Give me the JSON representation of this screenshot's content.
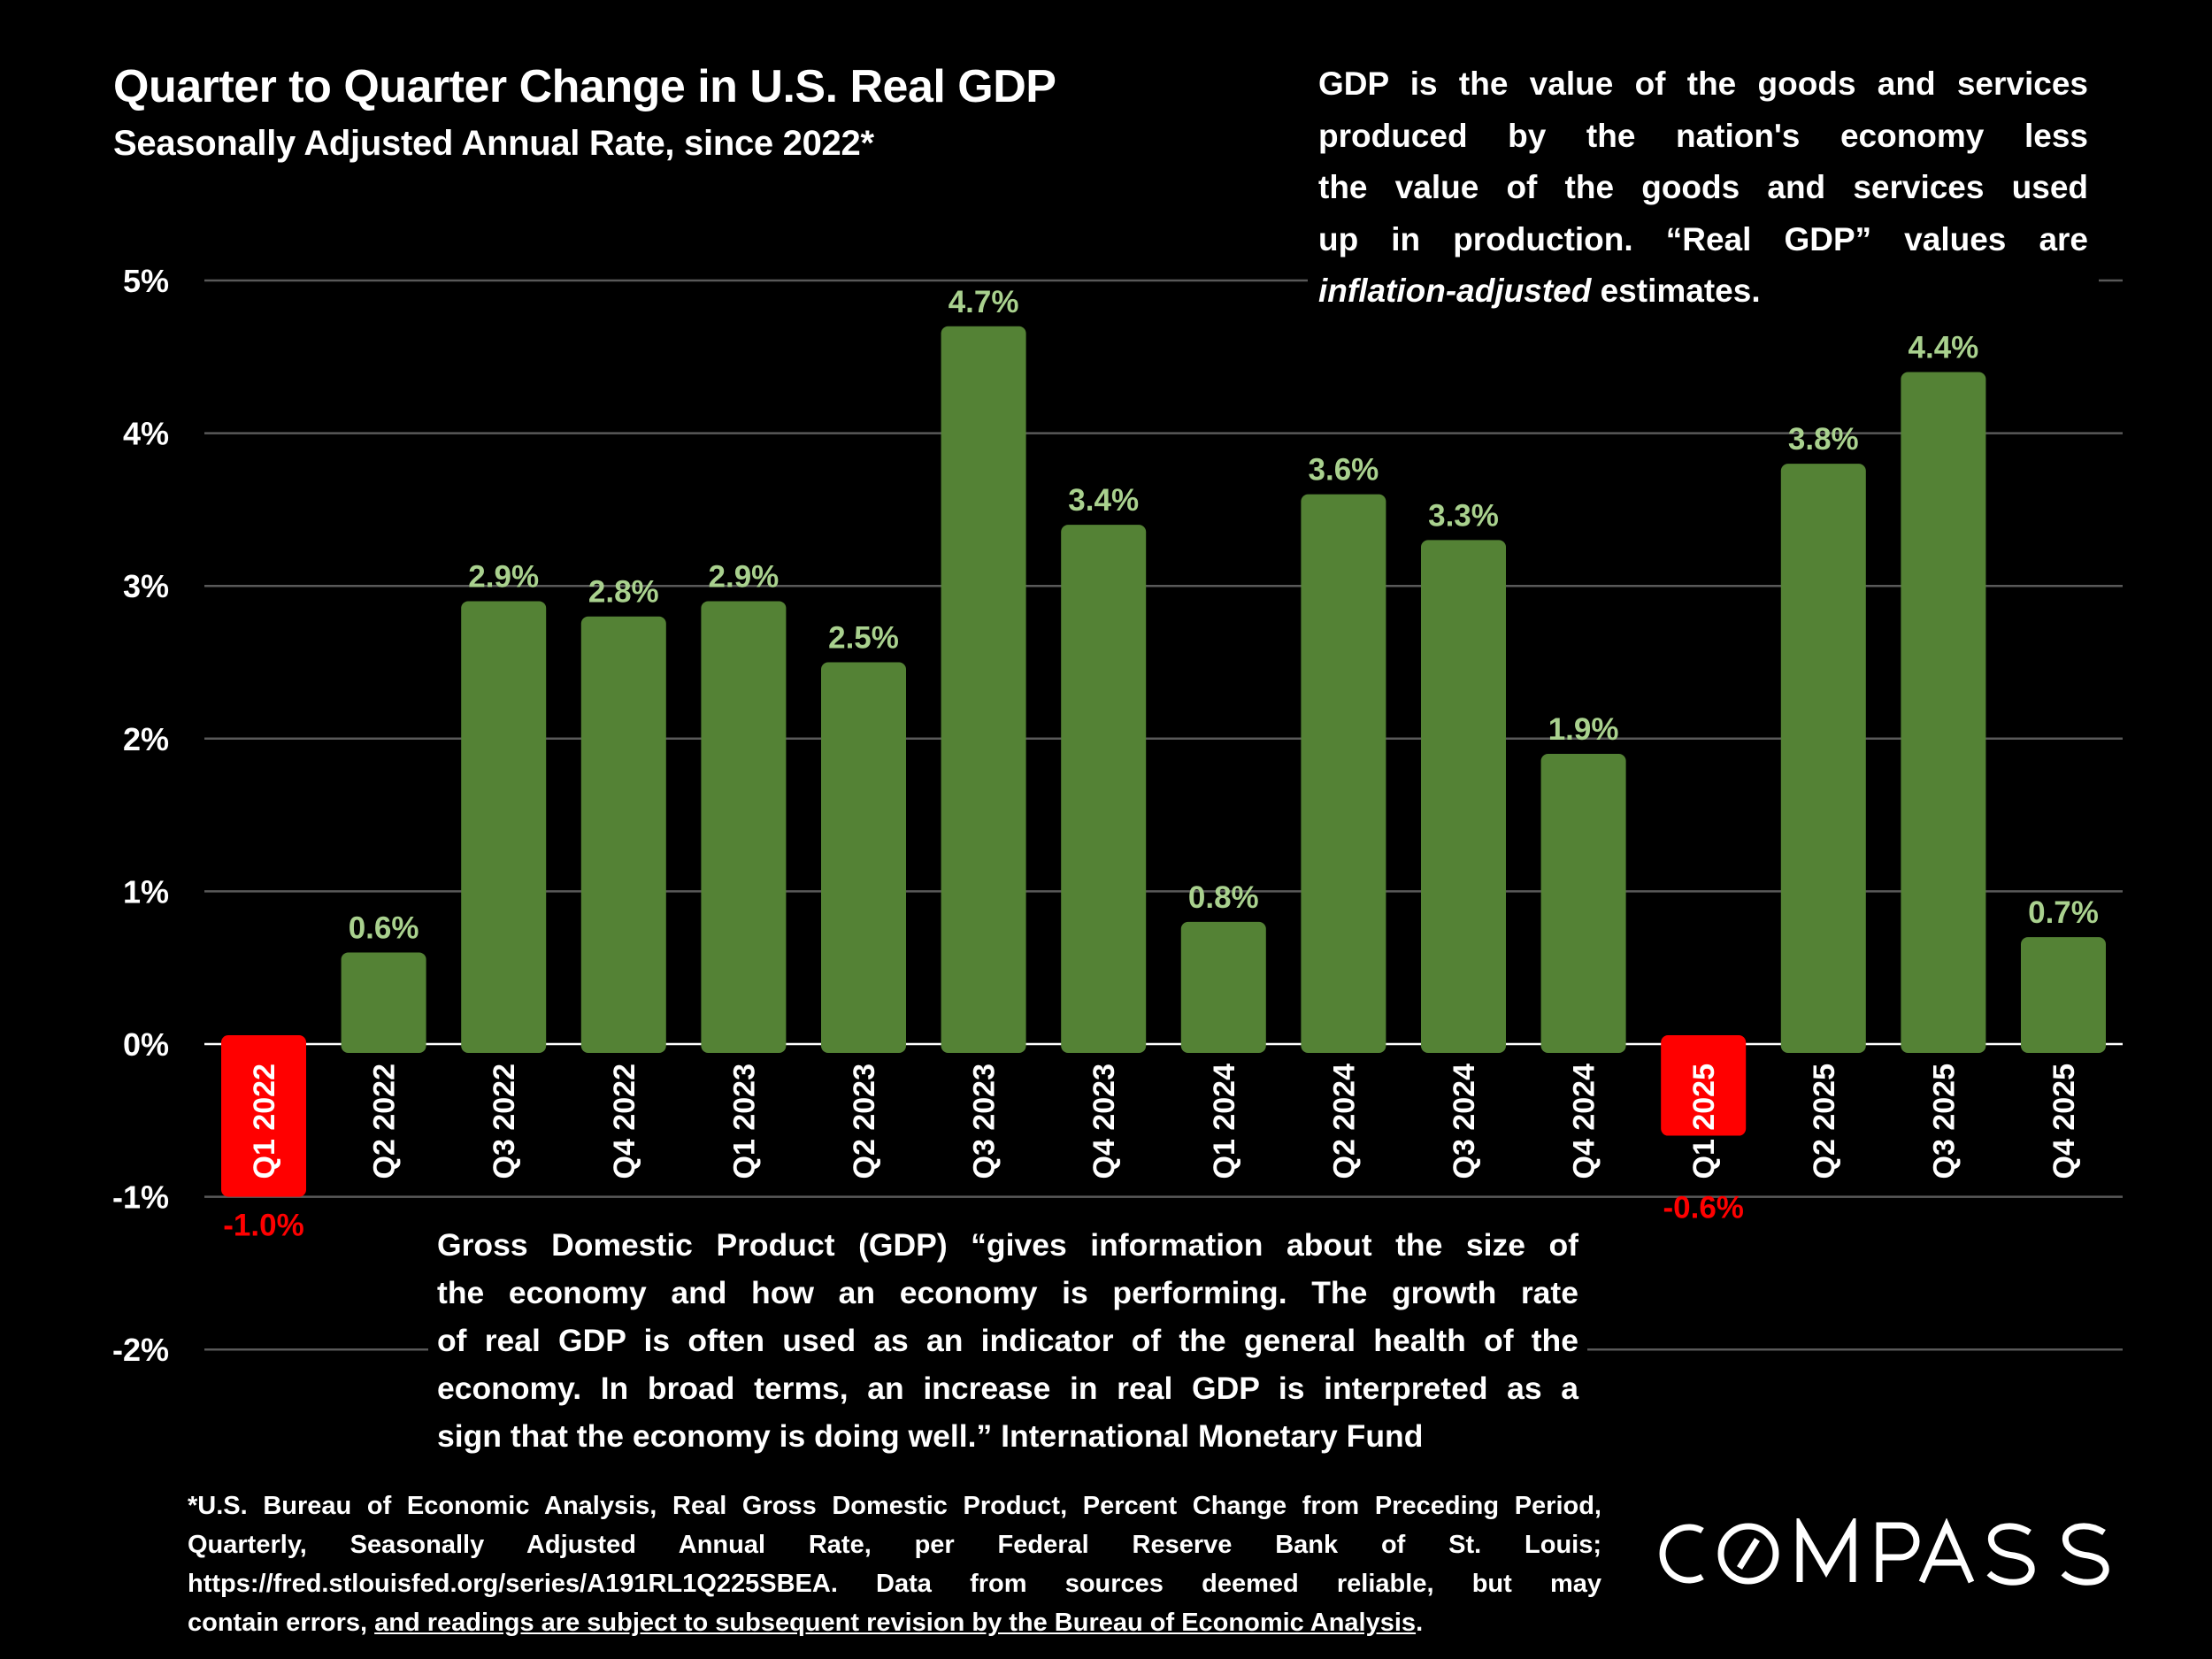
{
  "title": "Quarter to Quarter Change in U.S. Real GDP",
  "subtitle": "Seasonally Adjusted Annual Rate, since 2022*",
  "definition": {
    "lines": [
      "GDP is the value of the goods and services",
      "produced by the nation's economy less",
      "the value of the goods and services used",
      "up in production. “Real GDP” values are"
    ],
    "last_italic": "inflation-adjusted",
    "last_rest": " estimates."
  },
  "quote": {
    "lines": [
      "Gross Domestic Product (GDP) “gives information about the size of",
      "the economy and how an economy is performing. The growth rate",
      "of real GDP is often used as an indicator of the general health of the",
      "economy. In broad terms, an increase in real GDP is interpreted as a",
      "sign that the economy is doing well.” International Monetary Fund"
    ]
  },
  "footnote": {
    "lines": [
      "*U.S. Bureau of Economic Analysis, Real Gross Domestic Product, Percent Change from Preceding Period,",
      "Quarterly, Seasonally Adjusted Annual Rate, per Federal Reserve Bank of St. Louis;",
      "https://fred.stlouisfed.org/series/A191RL1Q225SBEA. Data from sources deemed reliable, but may"
    ],
    "last_plain": "contain errors, ",
    "last_underlined": "and readings are subject to subsequent revision by the Bureau of Economic Analysis",
    "last_end": "."
  },
  "logo_text": "COMPASS",
  "colors": {
    "background": "#000000",
    "positive_bar": "#548235",
    "positive_label": "#A9D18E",
    "negative": "#FF0000",
    "gridline": "#595959",
    "zero_line": "#FFFFFF"
  },
  "chart_data": {
    "type": "bar",
    "categories": [
      "Q1 2022",
      "Q2 2022",
      "Q3 2022",
      "Q4 2022",
      "Q1 2023",
      "Q2 2023",
      "Q3 2023",
      "Q4 2023",
      "Q1 2024",
      "Q2 2024",
      "Q3 2024",
      "Q4 2024",
      "Q1 2025",
      "Q2 2025",
      "Q3 2025",
      "Q4 2025"
    ],
    "values": [
      -1.0,
      0.6,
      2.9,
      2.8,
      2.9,
      2.5,
      4.7,
      3.4,
      0.8,
      3.6,
      3.3,
      1.9,
      -0.6,
      3.8,
      4.4,
      0.7
    ],
    "data_labels": [
      "-1.0%",
      "0.6%",
      "2.9%",
      "2.8%",
      "2.9%",
      "2.5%",
      "4.7%",
      "3.4%",
      "0.8%",
      "3.6%",
      "3.3%",
      "1.9%",
      "-0.6%",
      "3.8%",
      "4.4%",
      "0.7%"
    ],
    "yticks": [
      5,
      4,
      3,
      2,
      1,
      0,
      -1,
      -2
    ],
    "ytick_labels": [
      "5%",
      "4%",
      "3%",
      "2%",
      "1%",
      "0%",
      "-1%",
      "-2%"
    ],
    "ylim": [
      -2,
      5
    ],
    "grid": true,
    "title": "Quarter to Quarter Change in U.S. Real GDP",
    "subtitle": "Seasonally Adjusted Annual Rate, since 2022*"
  }
}
